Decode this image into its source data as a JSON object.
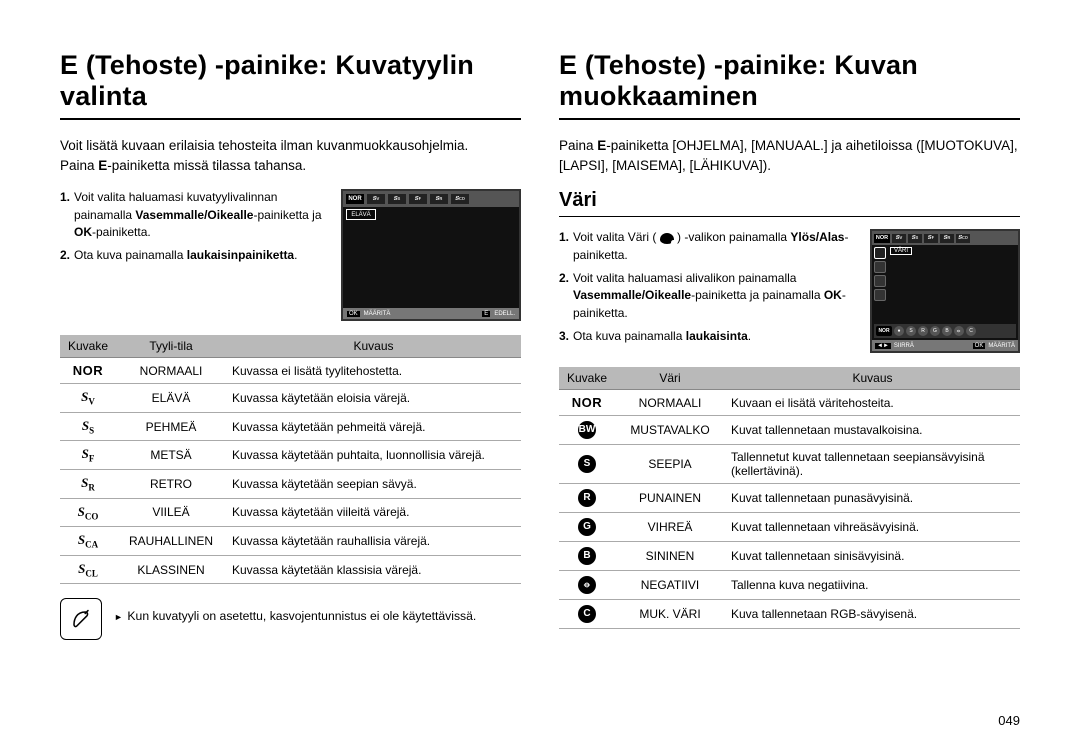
{
  "page_number": "049",
  "left": {
    "heading": "E (Tehoste) -painike: Kuvatyylin valinta",
    "intro_line1": "Voit lisätä kuvaan erilaisia tehosteita ilman kuvanmuokkausohjelmia.",
    "intro_line2_pre": "Paina ",
    "intro_line2_bold": "E",
    "intro_line2_post": "-painiketta missä tilassa tahansa.",
    "steps": [
      {
        "n": "1.",
        "pre": "Voit valita haluamasi kuvatyylivalinnan painamalla ",
        "b": "Vasemmalle/Oikealle",
        "post": "-painiketta ja ",
        "b2": "OK",
        "post2": "-painiketta."
      },
      {
        "n": "2.",
        "pre": "Ota kuva painamalla ",
        "b": "laukaisinpainiketta",
        "post": ".",
        "b2": "",
        "post2": ""
      }
    ],
    "lcd": {
      "norLabel": "NOR",
      "selected": "ELÄVÄ",
      "footer_ok": "OK",
      "footer_set": "MÄÄRITÄ",
      "footer_e": "E",
      "footer_back": "EDELL."
    },
    "table": {
      "headers": [
        "Kuvake",
        "Tyyli-tila",
        "Kuvaus"
      ],
      "rows": [
        {
          "iconType": "nor",
          "iconText": "NOR",
          "mode": "NORMAALI",
          "desc": "Kuvassa ei lisätä tyylitehostetta."
        },
        {
          "iconType": "sty",
          "iconText": "V",
          "mode": "ELÄVÄ",
          "desc": "Kuvassa käytetään eloisia värejä."
        },
        {
          "iconType": "sty",
          "iconText": "S",
          "mode": "PEHMEÄ",
          "desc": "Kuvassa käytetään pehmeitä värejä."
        },
        {
          "iconType": "sty",
          "iconText": "F",
          "mode": "METSÄ",
          "desc": "Kuvassa käytetään puhtaita, luonnollisia värejä."
        },
        {
          "iconType": "sty",
          "iconText": "R",
          "mode": "RETRO",
          "desc": "Kuvassa käytetään seepian sävyä."
        },
        {
          "iconType": "sty",
          "iconText": "CO",
          "mode": "VIILEÄ",
          "desc": "Kuvassa käytetään viileitä värejä."
        },
        {
          "iconType": "sty",
          "iconText": "CA",
          "mode": "RAUHALLINEN",
          "desc": "Kuvassa käytetään rauhallisia värejä."
        },
        {
          "iconType": "sty",
          "iconText": "CL",
          "mode": "KLASSINEN",
          "desc": "Kuvassa käytetään klassisia värejä."
        }
      ]
    },
    "note": "Kun kuvatyyli on asetettu, kasvojentunnistus ei ole käytettävissä."
  },
  "right": {
    "heading": "E (Tehoste) -painike: Kuvan muokkaaminen",
    "intro_pre": "Paina ",
    "intro_bold": "E",
    "intro_post": "-painiketta [OHJELMA], [MANUAAL.] ja aihetiloissa ([MUOTOKUVA], [LAPSI], [MAISEMA], [LÄHIKUVA]).",
    "section": "Väri",
    "steps": [
      {
        "n": "1.",
        "html": "Voit valita Väri ( <palette> ) -valikon painamalla ",
        "b": "Ylös/Alas",
        "post": "-painiketta."
      },
      {
        "n": "2.",
        "html": "Voit valita haluamasi alivalikon painamalla ",
        "b": "Vasemmalle/Oikealle",
        "post": "-painiketta ja painamalla ",
        "b2": "OK",
        "post2": "-painiketta."
      },
      {
        "n": "3.",
        "html": "Ota kuva painamalla ",
        "b": "laukaisinta",
        "post": ".",
        "b2": "",
        "post2": ""
      }
    ],
    "lcd": {
      "norLabel": "NOR",
      "stripNor": "NOR",
      "selected": "VÄRI",
      "footer_move_k": "◄►",
      "footer_move": "SIIRRÄ",
      "footer_ok": "OK",
      "footer_set": "MÄÄRITÄ"
    },
    "table": {
      "headers": [
        "Kuvake",
        "Väri",
        "Kuvaus"
      ],
      "rows": [
        {
          "iconType": "nor",
          "iconText": "NOR",
          "mode": "NORMAALI",
          "desc": "Kuvaan ei lisätä väritehosteita."
        },
        {
          "iconType": "circ",
          "iconText": "BW",
          "mode": "MUSTAVALKO",
          "desc": "Kuvat tallennetaan mustavalkoisina."
        },
        {
          "iconType": "circ",
          "iconText": "S",
          "mode": "SEEPIA",
          "desc": "Tallennetut kuvat tallennetaan seepiansävyisinä (kellertävinä)."
        },
        {
          "iconType": "circ",
          "iconText": "R",
          "mode": "PUNAINEN",
          "desc": "Kuvat tallennetaan punasävyisinä."
        },
        {
          "iconType": "circ",
          "iconText": "G",
          "mode": "VIHREÄ",
          "desc": "Kuvat tallennetaan vihreäsävyisinä."
        },
        {
          "iconType": "circ",
          "iconText": "B",
          "mode": "SININEN",
          "desc": "Kuvat tallennetaan sinisävyisinä."
        },
        {
          "iconType": "circ",
          "iconText": "⦵",
          "mode": "NEGATIIVI",
          "desc": "Tallenna kuva negatiivina."
        },
        {
          "iconType": "circ",
          "iconText": "C",
          "mode": "MUK. VÄRI",
          "desc": "Kuva tallennetaan RGB-sävyisenä."
        }
      ]
    }
  }
}
